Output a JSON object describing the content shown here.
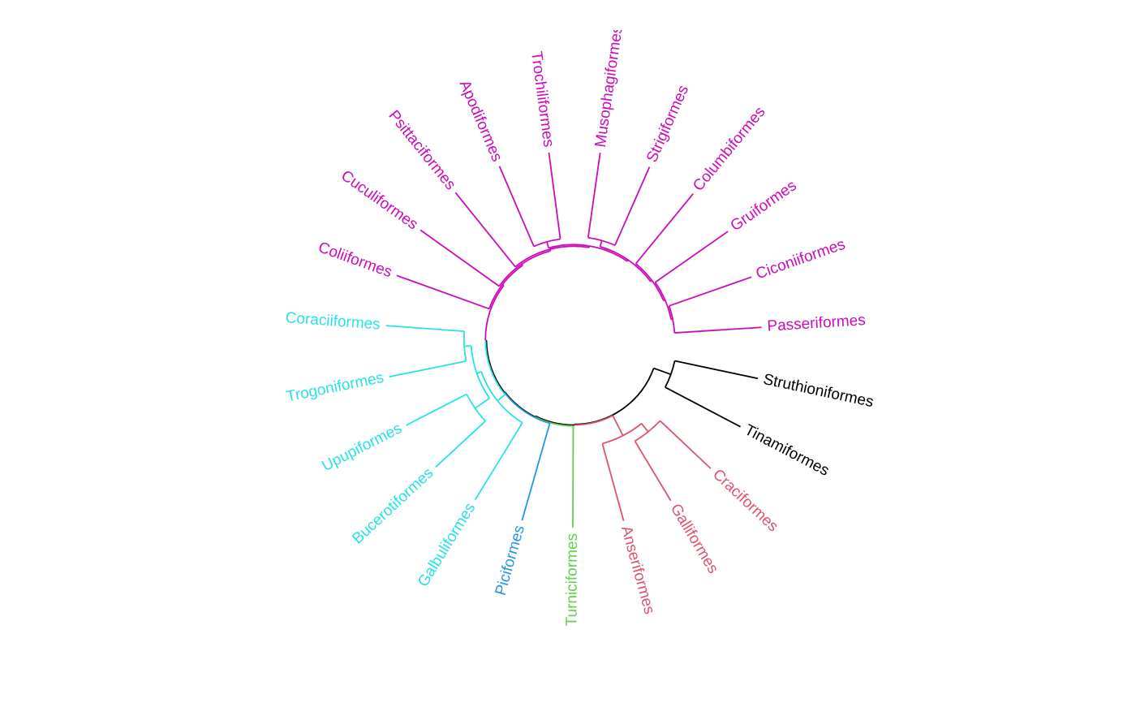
{
  "diagram": {
    "type": "circular-dendrogram",
    "colors": {
      "black": "#000000",
      "red": "#DF536B",
      "green": "#61D04F",
      "blue": "#2297E6",
      "cyan": "#28E2E5",
      "magenta": "#CD0BBC"
    },
    "tree": {
      "h": 32.2,
      "children": [
        {
          "h": 26.5,
          "children": [
            {
              "label": "Struthioniformes",
              "color": "#000000"
            },
            {
              "label": "Tinamiformes",
              "color": "#000000"
            }
          ]
        },
        {
          "h": 32.0,
          "children": [
            {
              "h": 25.0,
              "children": [
                {
                  "h": 21.7,
                  "children": [
                    {
                      "label": "Craciformes",
                      "color": "#DF536B"
                    },
                    {
                      "label": "Galliformes",
                      "color": "#DF536B"
                    }
                  ]
                },
                {
                  "label": "Anseriformes",
                  "color": "#DF536B"
                }
              ]
            },
            {
              "h": 31.7,
              "children": [
                {
                  "label": "Turniciformes",
                  "color": "#61D04F"
                },
                {
                  "h": 31.5,
                  "children": [
                    {
                      "label": "Piciformes",
                      "color": "#2297E6"
                    },
                    {
                      "h": 31.2,
                      "children": [
                        {
                          "h": 28.2,
                          "children": [
                            {
                              "label": "Galbuliformes",
                              "color": "#28E2E5"
                            },
                            {
                              "h": 26.7,
                              "children": [
                                {
                                  "h": 21.2,
                                  "children": [
                                    {
                                      "label": "Bucerotiformes",
                                      "color": "#28E2E5"
                                    },
                                    {
                                      "label": "Upupiformes",
                                      "color": "#28E2E5"
                                    }
                                  ]
                                },
                                {
                                  "h": 24.5,
                                  "children": [
                                    {
                                      "label": "Trogoniformes",
                                      "color": "#28E2E5"
                                    },
                                    {
                                      "label": "Coraciiformes",
                                      "color": "#28E2E5"
                                    }
                                  ]
                                }
                              ]
                            }
                          ]
                        },
                        {
                          "h": 30.7,
                          "children": [
                            {
                              "label": "Coliiformes",
                              "color": "#CD0BBC"
                            },
                            {
                              "h": 30.2,
                              "children": [
                                {
                                  "label": "Cuculiformes",
                                  "color": "#CD0BBC"
                                },
                                {
                                  "h": 29.7,
                                  "children": [
                                    {
                                      "label": "Psittaciformes",
                                      "color": "#CD0BBC"
                                    },
                                    {
                                      "h": 29.2,
                                      "children": [
                                        {
                                          "h": 27.2,
                                          "children": [
                                            {
                                              "label": "Apodiformes",
                                              "color": "#CD0BBC"
                                            },
                                            {
                                              "label": "Trochiliformes",
                                              "color": "#CD0BBC"
                                            }
                                          ]
                                        },
                                        {
                                          "h": 28.7,
                                          "children": [
                                            {
                                              "h": 26.7,
                                              "children": [
                                                {
                                                  "label": "Musophagiformes",
                                                  "color": "#CD0BBC"
                                                },
                                                {
                                                  "label": "Strigiformes",
                                                  "color": "#CD0BBC"
                                                }
                                              ]
                                            },
                                            {
                                              "h": 28.2,
                                              "children": [
                                                {
                                                  "label": "Columbiformes",
                                                  "color": "#CD0BBC"
                                                },
                                                {
                                                  "h": 27.7,
                                                  "children": [
                                                    {
                                                      "label": "Gruiformes",
                                                      "color": "#CD0BBC"
                                                    },
                                                    {
                                                      "h": 27.2,
                                                      "children": [
                                                        {
                                                          "label": "Ciconiiformes",
                                                          "color": "#CD0BBC"
                                                        },
                                                        {
                                                          "label": "Passeriformes",
                                                          "color": "#CD0BBC"
                                                        }
                                                      ]
                                                    }
                                                  ]
                                                }
                                              ]
                                            }
                                          ]
                                        }
                                      ]
                                    }
                                  ]
                                }
                              ]
                            }
                          ]
                        }
                      ]
                    }
                  ]
                }
              ]
            }
          ]
        }
      ]
    }
  }
}
